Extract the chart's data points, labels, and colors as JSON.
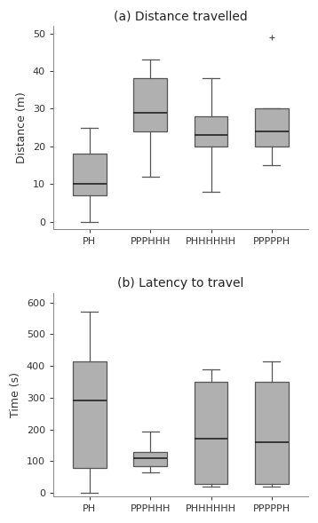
{
  "title_a": "(a) Distance travelled",
  "title_b": "(b) Latency to travel",
  "categories": [
    "PH",
    "PPPHHH",
    "PHHHHHH",
    "PPPPPH"
  ],
  "ylabel_a": "Distance (m)",
  "ylabel_b": "Time (s)",
  "box_a": {
    "PH": {
      "whislo": 0,
      "q1": 7,
      "med": 10,
      "q3": 18,
      "whishi": 25,
      "fliers": []
    },
    "PPPHHH": {
      "whislo": 12,
      "q1": 24,
      "med": 29,
      "q3": 38,
      "whishi": 43,
      "fliers": []
    },
    "PHHHHHH": {
      "whislo": 8,
      "q1": 20,
      "med": 23,
      "q3": 28,
      "whishi": 38,
      "fliers": []
    },
    "PPPPPH": {
      "whislo": 15,
      "q1": 20,
      "med": 24,
      "q3": 30,
      "whishi": 30,
      "fliers": [
        49
      ]
    }
  },
  "box_b": {
    "PH": {
      "whislo": 0,
      "q1": 80,
      "med": 290,
      "q3": 415,
      "whishi": 570,
      "fliers": []
    },
    "PPPHHH": {
      "whislo": 65,
      "q1": 85,
      "med": 110,
      "q3": 130,
      "whishi": 193,
      "fliers": []
    },
    "PHHHHHH": {
      "whislo": 20,
      "q1": 30,
      "med": 170,
      "q3": 350,
      "whishi": 390,
      "fliers": []
    },
    "PPPPPH": {
      "whislo": 20,
      "q1": 30,
      "med": 160,
      "q3": 350,
      "whishi": 415,
      "fliers": []
    }
  },
  "ylim_a": [
    -2,
    52
  ],
  "ylim_b": [
    -10,
    630
  ],
  "yticks_a": [
    0,
    10,
    20,
    30,
    40,
    50
  ],
  "yticks_b": [
    0,
    100,
    200,
    300,
    400,
    500,
    600
  ],
  "box_color": "#b0b0b0",
  "box_edge_color": "#555555",
  "median_color": "#222222",
  "whisker_color": "#555555",
  "cap_color": "#555555",
  "flier_color": "#555555",
  "bg_color": "#ffffff",
  "box_width": 0.55,
  "title_fontsize": 10,
  "label_fontsize": 9,
  "tick_fontsize": 8
}
